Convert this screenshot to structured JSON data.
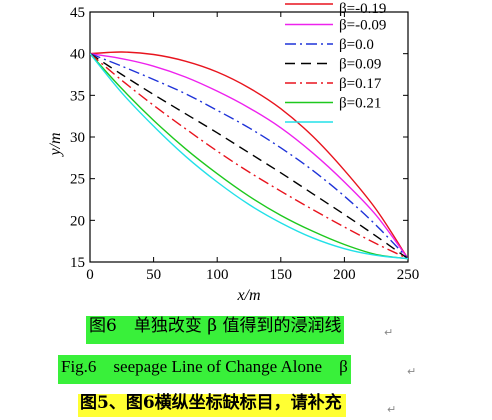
{
  "chart_data": {
    "type": "line",
    "xlabel": "x/m",
    "ylabel": "y/m",
    "xlim": [
      0,
      250
    ],
    "ylim": [
      15,
      45
    ],
    "xticks": [
      "0",
      "50",
      "100",
      "150",
      "200",
      "250"
    ],
    "yticks": [
      "15",
      "20",
      "25",
      "30",
      "35",
      "40",
      "45"
    ],
    "legend_position": "top-right",
    "series": [
      {
        "name": "β=-0.19",
        "color": "#e8141e",
        "dash": "solid",
        "x": [
          0,
          25,
          50,
          75,
          100,
          125,
          150,
          175,
          200,
          225,
          250
        ],
        "y": [
          40.0,
          40.2,
          39.9,
          39.1,
          37.8,
          35.9,
          33.4,
          30.1,
          26.0,
          21.3,
          15.4
        ]
      },
      {
        "name": "β=-0.09",
        "color": "#ee22ee",
        "dash": "solid",
        "x": [
          0,
          25,
          50,
          75,
          100,
          125,
          150,
          175,
          200,
          225,
          250
        ],
        "y": [
          40.0,
          39.4,
          38.5,
          37.2,
          35.5,
          33.5,
          31.1,
          28.1,
          24.6,
          20.6,
          15.4
        ]
      },
      {
        "name": "β=0.0",
        "color": "#1f33d8",
        "dash": "dashdot",
        "x": [
          0,
          25,
          50,
          75,
          100,
          125,
          150,
          175,
          200,
          225,
          250
        ],
        "y": [
          40.0,
          38.5,
          36.9,
          35.2,
          33.2,
          31.1,
          28.7,
          26.0,
          22.9,
          19.4,
          15.4
        ]
      },
      {
        "name": "β=0.09",
        "color": "#000000",
        "dash": "dash",
        "x": [
          0,
          25,
          50,
          75,
          100,
          125,
          150,
          175,
          200,
          225,
          250
        ],
        "y": [
          40.0,
          37.5,
          35.1,
          32.8,
          30.5,
          28.1,
          25.7,
          23.2,
          20.7,
          18.1,
          15.4
        ]
      },
      {
        "name": "β=0.17",
        "color": "#e8141e",
        "dash": "dashdot",
        "x": [
          0,
          25,
          50,
          75,
          100,
          125,
          150,
          175,
          200,
          225,
          250
        ],
        "y": [
          40.0,
          36.8,
          33.8,
          31.0,
          28.3,
          25.8,
          23.5,
          21.3,
          19.2,
          17.2,
          15.4
        ]
      },
      {
        "name": "β=0.21",
        "color": "#1ec81e",
        "dash": "solid",
        "x": [
          0,
          25,
          50,
          75,
          100,
          125,
          150,
          175,
          200,
          225,
          250
        ],
        "y": [
          40.0,
          35.8,
          32.0,
          28.6,
          25.6,
          22.9,
          20.6,
          18.7,
          17.1,
          15.9,
          15.4
        ]
      },
      {
        "name": "",
        "color": "#22e0e8",
        "dash": "solid",
        "x": [
          0,
          25,
          50,
          75,
          100,
          125,
          150,
          175,
          200,
          225,
          250
        ],
        "y": [
          40.0,
          35.3,
          31.3,
          27.7,
          24.6,
          21.9,
          19.7,
          17.9,
          16.6,
          15.8,
          15.4
        ]
      }
    ]
  },
  "captions": {
    "figure_cn": "图6　单独改变 β 值得到的浸润线",
    "figure_en": "Fig.6　seepage Line of Change Alone　β",
    "note": "图5、图6横纵坐标缺标目，请补充"
  }
}
